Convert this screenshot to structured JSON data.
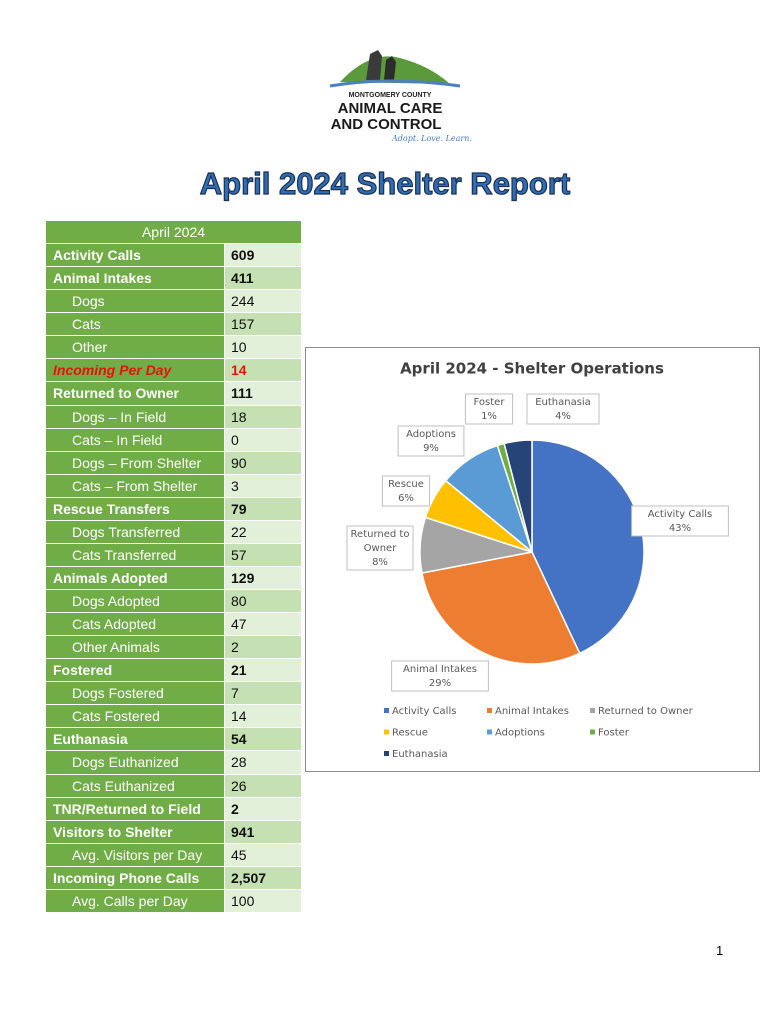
{
  "logo": {
    "county": "MONTGOMERY COUNTY",
    "line1": "ANIMAL CARE",
    "line2": "AND CONTROL",
    "tagline": "Adopt. Love. Learn."
  },
  "title": "April 2024  Shelter Report",
  "table": {
    "header": "April 2024",
    "sections": [
      {
        "label": "Activity Calls",
        "value": "609",
        "items": []
      },
      {
        "label": "Animal Intakes",
        "value": "411",
        "items": [
          {
            "label": "Dogs",
            "value": "244"
          },
          {
            "label": "Cats",
            "value": "157"
          },
          {
            "label": "Other",
            "value": "10"
          }
        ]
      },
      {
        "label": "Incoming Per Day",
        "value": "14",
        "color": "#e8120c",
        "items": []
      },
      {
        "label": "Returned to Owner",
        "value": "111",
        "items": [
          {
            "label": "Dogs – In Field",
            "value": "18"
          },
          {
            "label": "Cats – In Field",
            "value": "0"
          },
          {
            "label": "Dogs – From Shelter",
            "value": "90"
          },
          {
            "label": "Cats – From Shelter",
            "value": "3"
          }
        ]
      },
      {
        "label": "Rescue Transfers",
        "value": "79",
        "items": [
          {
            "label": "Dogs Transferred",
            "value": "22"
          },
          {
            "label": "Cats Transferred",
            "value": "57"
          }
        ]
      },
      {
        "label": "Animals Adopted",
        "value": "129",
        "items": [
          {
            "label": "Dogs Adopted",
            "value": "80"
          },
          {
            "label": "Cats Adopted",
            "value": "47"
          },
          {
            "label": "Other Animals",
            "value": "2"
          }
        ]
      },
      {
        "label": "Fostered",
        "value": "21",
        "items": [
          {
            "label": "Dogs Fostered",
            "value": "7"
          },
          {
            "label": "Cats Fostered",
            "value": "14"
          }
        ]
      },
      {
        "label": "Euthanasia",
        "value": "54",
        "items": [
          {
            "label": "Dogs Euthanized",
            "value": "28"
          },
          {
            "label": "Cats Euthanized",
            "value": "26"
          }
        ]
      },
      {
        "label": "TNR/Returned to Field",
        "value": "2",
        "items": []
      },
      {
        "label": "Visitors to Shelter",
        "value": "941",
        "items": [
          {
            "label": "Avg. Visitors per Day",
            "value": "45"
          }
        ]
      },
      {
        "label": "Incoming Phone Calls",
        "value": "2,507",
        "items": [
          {
            "label": "Avg. Calls per Day",
            "value": "100"
          }
        ]
      }
    ]
  },
  "chart_data": {
    "type": "pie",
    "title": "April 2024 - Shelter Operations",
    "categories": [
      "Activity Calls",
      "Animal Intakes",
      "Returned to Owner",
      "Rescue",
      "Adoptions",
      "Foster",
      "Euthanasia"
    ],
    "values": [
      43,
      29,
      8,
      6,
      9,
      1,
      4
    ],
    "value_labels": [
      "43%",
      "29%",
      "8%",
      "6%",
      "9%",
      "1%",
      "4%"
    ],
    "colors": [
      "#4472c4",
      "#ed7d31",
      "#a5a5a5",
      "#ffc000",
      "#5b9bd5",
      "#70ad47",
      "#264478"
    ],
    "legend": "bottom"
  },
  "page_number": "1"
}
